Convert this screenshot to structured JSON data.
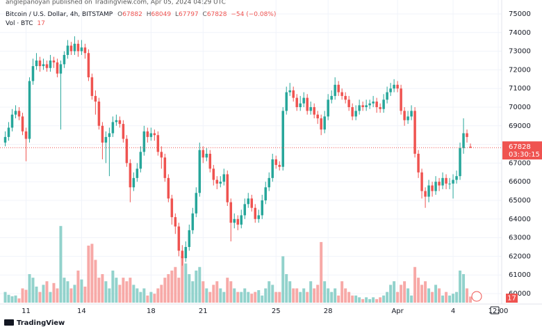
{
  "chart_data": {
    "type": "candlestick",
    "publisher_note": "anglepanoyan published on TradingView.com, Apr 05, 2024 04:29 UTC",
    "title": "Bitcoin / U.S. Dollar, 4h, BITSTAMP",
    "legend": {
      "open_label": "O",
      "high_label": "H",
      "low_label": "L",
      "close_label": "C",
      "change": "−54 (−0.08%)",
      "volume_label": "Vol · BTC"
    },
    "countdown": "03:30:15",
    "footer": "TradingView",
    "up_color": "#26a69a",
    "down_color": "#ef5350",
    "up_volume_color": "#92d2cc",
    "down_volume_color": "#f7a9a7",
    "grid": true,
    "ylim": [
      59440,
      75560
    ],
    "yticks": [
      60000,
      61000,
      62000,
      63000,
      64000,
      65000,
      66000,
      67000,
      68000,
      69000,
      70000,
      71000,
      72000,
      73000,
      74000,
      75000
    ],
    "xlim": [
      -1.5,
      143
    ],
    "xticks": [
      {
        "value": 6,
        "label": "11"
      },
      {
        "value": 22,
        "label": "14"
      },
      {
        "value": 42,
        "label": "18"
      },
      {
        "value": 57,
        "label": "21"
      },
      {
        "value": 78,
        "label": "25"
      },
      {
        "value": 93,
        "label": "28"
      },
      {
        "value": 113,
        "label": "Apr"
      },
      {
        "value": 129,
        "label": "4"
      },
      {
        "value": 142,
        "label": "12:00"
      }
    ],
    "volume_ylim": [
      0,
      400
    ],
    "open": [
      68100,
      68400,
      68900,
      69600,
      69800,
      69500,
      68700,
      68300,
      71400,
      72200,
      72500,
      72200,
      72300,
      72100,
      72500,
      72400,
      71800,
      72300,
      72800,
      73300,
      73000,
      73400,
      73000,
      73200,
      72900,
      71600,
      70600,
      70300,
      69000,
      68100,
      68400,
      68600,
      69200,
      69300,
      69100,
      68300,
      67000,
      65700,
      66200,
      66700,
      67600,
      68700,
      68400,
      68600,
      68500,
      67600,
      67300,
      66200,
      65100,
      64100,
      63600,
      62300,
      61900,
      62500,
      63400,
      64300,
      65400,
      67700,
      67300,
      67500,
      66700,
      66100,
      65900,
      66000,
      66400,
      64900,
      63800,
      64000,
      63700,
      64200,
      64800,
      65100,
      64600,
      64000,
      64200,
      65000,
      65700,
      66200,
      67200,
      66900,
      66800,
      69800,
      70800,
      70900,
      70500,
      70000,
      70200,
      70500,
      69800,
      70000,
      69600,
      69400,
      68800,
      69500,
      70400,
      70600,
      71200,
      70800,
      70600,
      70400,
      70000,
      69500,
      69800,
      70100,
      70000,
      70100,
      70200,
      70300,
      70000,
      69900,
      70400,
      70800,
      71000,
      71200,
      71000,
      69800,
      69300,
      69500,
      69800,
      67500,
      66500,
      65500,
      65200,
      65800,
      65500,
      66000,
      65800,
      66200,
      65900,
      65900,
      66100,
      66300,
      67800,
      68600,
      67882
    ],
    "high": [
      68700,
      69200,
      69900,
      70100,
      70000,
      69700,
      68900,
      71600,
      72600,
      72900,
      72700,
      72600,
      72500,
      72800,
      72700,
      72600,
      72500,
      73000,
      73600,
      73500,
      73800,
      73600,
      73600,
      73400,
      73100,
      71800,
      70900,
      70500,
      69200,
      68700,
      68900,
      69500,
      69600,
      69500,
      69300,
      68500,
      67200,
      66500,
      67000,
      67900,
      69000,
      68900,
      68900,
      68800,
      68700,
      67900,
      67500,
      66400,
      65300,
      64300,
      63800,
      62600,
      62800,
      63700,
      64600,
      65700,
      68100,
      67900,
      67800,
      67700,
      66900,
      66300,
      66300,
      66700,
      66600,
      65100,
      64300,
      64200,
      64500,
      65100,
      65400,
      65300,
      64800,
      64500,
      65300,
      66000,
      66500,
      67500,
      67400,
      67100,
      70000,
      71100,
      71300,
      71100,
      70700,
      70600,
      70800,
      70700,
      70300,
      70200,
      69800,
      69600,
      69800,
      70700,
      70900,
      71600,
      71400,
      71000,
      70800,
      70600,
      70200,
      70100,
      70400,
      70300,
      70400,
      70400,
      70600,
      70500,
      70200,
      70700,
      71100,
      71300,
      71500,
      71400,
      71200,
      70000,
      69800,
      70100,
      70000,
      67700,
      66700,
      65700,
      66100,
      66000,
      66300,
      66200,
      66500,
      66400,
      66200,
      66400,
      66600,
      68100,
      69400,
      68800,
      68049
    ],
    "low": [
      67900,
      68200,
      68700,
      69400,
      69300,
      68500,
      67100,
      68100,
      71200,
      72000,
      71900,
      72000,
      71900,
      71900,
      72100,
      71600,
      68800,
      72100,
      72600,
      72800,
      72800,
      72700,
      72800,
      72600,
      71400,
      70400,
      69600,
      68800,
      67200,
      67000,
      66300,
      68400,
      69000,
      68900,
      68100,
      66800,
      64900,
      65500,
      66000,
      66500,
      67400,
      68100,
      68200,
      68200,
      67400,
      66700,
      66000,
      64900,
      63700,
      63200,
      62000,
      61500,
      61700,
      62300,
      63200,
      64100,
      65200,
      67000,
      67100,
      66500,
      65800,
      65600,
      65700,
      65800,
      64700,
      62800,
      63500,
      63400,
      63500,
      64000,
      64600,
      64400,
      63800,
      63800,
      64000,
      64800,
      65500,
      66000,
      66700,
      66600,
      66600,
      69600,
      70600,
      70300,
      69800,
      69800,
      70000,
      69600,
      69600,
      69400,
      69100,
      68500,
      68600,
      69300,
      70200,
      70400,
      70600,
      70400,
      70200,
      69800,
      69300,
      69300,
      69600,
      69800,
      69800,
      69900,
      70000,
      69700,
      69700,
      69700,
      70200,
      70600,
      70800,
      70800,
      69600,
      69000,
      69100,
      69300,
      67300,
      66200,
      65100,
      64600,
      64900,
      65200,
      65300,
      65500,
      65600,
      65600,
      65600,
      65100,
      65900,
      66100,
      67500,
      68100,
      67797
    ],
    "close": [
      68400,
      68900,
      69600,
      69800,
      69500,
      68700,
      68300,
      71400,
      72200,
      72500,
      72200,
      72300,
      72100,
      72500,
      72400,
      71800,
      72300,
      72800,
      73300,
      73000,
      73400,
      73000,
      73200,
      72900,
      71600,
      70600,
      70300,
      69000,
      68100,
      68400,
      68600,
      69200,
      69300,
      69100,
      68300,
      67000,
      65700,
      66200,
      66700,
      67600,
      68700,
      68400,
      68600,
      68500,
      67600,
      67300,
      66200,
      65100,
      64100,
      63600,
      62300,
      61900,
      62500,
      63400,
      64300,
      65400,
      67700,
      67300,
      67500,
      66700,
      66100,
      65900,
      66000,
      66400,
      64900,
      63800,
      64000,
      63700,
      64200,
      64800,
      65100,
      64600,
      64000,
      64200,
      65000,
      65700,
      66200,
      67200,
      66900,
      66800,
      69800,
      70800,
      70900,
      70500,
      70000,
      70200,
      70500,
      69800,
      70000,
      69600,
      69400,
      68800,
      69500,
      70400,
      70600,
      71200,
      70800,
      70600,
      70400,
      70000,
      69500,
      69800,
      70100,
      70000,
      70100,
      70200,
      70300,
      70000,
      69900,
      70400,
      70800,
      71000,
      71200,
      71000,
      69800,
      69300,
      69500,
      69800,
      67500,
      66500,
      65500,
      65200,
      65800,
      65500,
      66000,
      65800,
      66200,
      65900,
      65900,
      66100,
      66300,
      67800,
      68600,
      68400,
      67828
    ],
    "volume": [
      30,
      22,
      18,
      20,
      12,
      40,
      36,
      80,
      70,
      45,
      30,
      50,
      60,
      30,
      55,
      40,
      215,
      70,
      60,
      40,
      50,
      90,
      65,
      45,
      160,
      165,
      120,
      70,
      80,
      60,
      40,
      90,
      70,
      50,
      70,
      60,
      70,
      50,
      40,
      30,
      40,
      20,
      30,
      25,
      40,
      50,
      70,
      80,
      90,
      100,
      70,
      130,
      110,
      80,
      60,
      90,
      100,
      60,
      40,
      30,
      50,
      60,
      40,
      30,
      70,
      60,
      40,
      30,
      30,
      40,
      30,
      25,
      30,
      35,
      20,
      40,
      60,
      50,
      30,
      30,
      130,
      80,
      60,
      40,
      40,
      30,
      40,
      30,
      60,
      40,
      50,
      170,
      60,
      40,
      30,
      40,
      20,
      60,
      40,
      30,
      20,
      20,
      15,
      10,
      15,
      10,
      15,
      10,
      15,
      20,
      30,
      50,
      60,
      30,
      50,
      60,
      40,
      20,
      100,
      70,
      50,
      60,
      40,
      30,
      50,
      40,
      20,
      30,
      20,
      25,
      30,
      90,
      80,
      40,
      17
    ]
  }
}
